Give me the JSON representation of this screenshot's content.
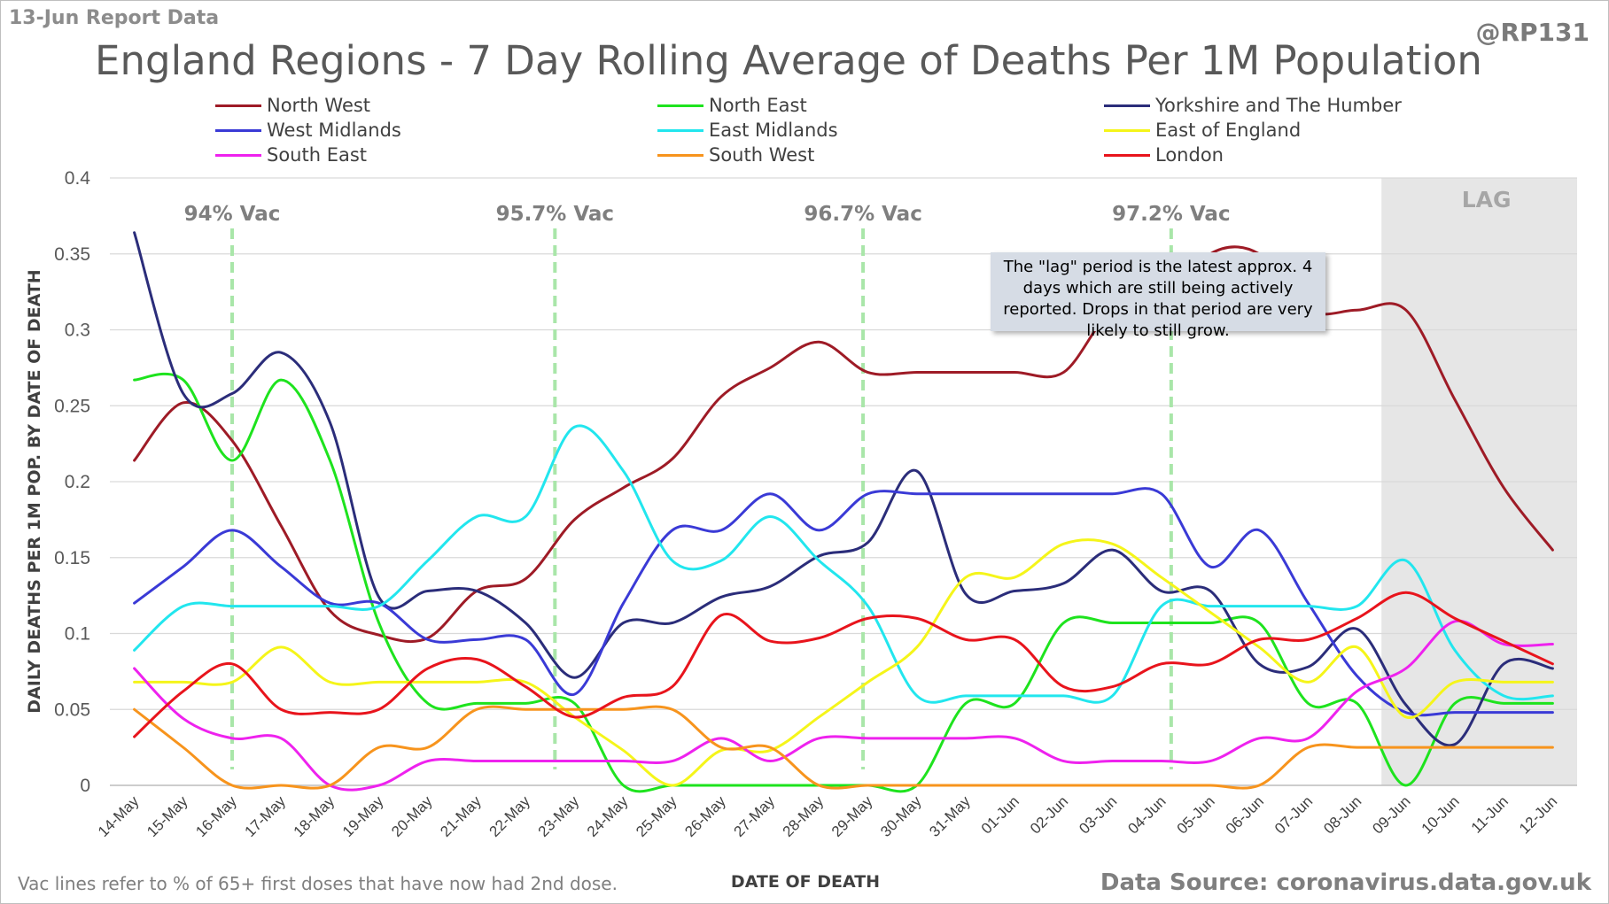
{
  "header": {
    "report_label": "13-Jun Report Data",
    "handle": "@RP131"
  },
  "footer": {
    "footnote": "Vac lines refer to % of 65+ first doses that have now had 2nd dose.",
    "source": "Data Source: coronavirus.data.gov.uk"
  },
  "note": "The \"lag\" period is the latest approx. 4 days which are still being actively reported. Drops in that period are very likely to still grow.",
  "chart_data": {
    "type": "line",
    "title": "England Regions - 7 Day Rolling Average of Deaths Per 1M Population",
    "xlabel": "DATE OF DEATH",
    "ylabel": "DAILY DEATHS PER 1M POP. BY DATE OF DEATH",
    "ylim": [
      0,
      0.4
    ],
    "yticks": [
      0,
      0.05,
      0.1,
      0.15,
      0.2,
      0.25,
      0.3,
      0.35,
      0.4
    ],
    "ytick_labels": [
      "0",
      "0.05",
      "0.1",
      "0.15",
      "0.2",
      "0.25",
      "0.3",
      "0.35",
      "0.4"
    ],
    "grid": true,
    "legend_position": "top",
    "categories": [
      "14-May",
      "15-May",
      "16-May",
      "17-May",
      "18-May",
      "19-May",
      "20-May",
      "21-May",
      "22-May",
      "23-May",
      "24-May",
      "25-May",
      "26-May",
      "27-May",
      "28-May",
      "29-May",
      "30-May",
      "31-May",
      "01-Jun",
      "02-Jun",
      "03-Jun",
      "04-Jun",
      "05-Jun",
      "06-Jun",
      "07-Jun",
      "08-Jun",
      "09-Jun",
      "10-Jun",
      "11-Jun",
      "12-Jun"
    ],
    "lag": {
      "label": "LAG",
      "start_index": 26,
      "color": "#e6e6e6"
    },
    "vac_lines": [
      {
        "label": "94% Vac",
        "position": 2.0
      },
      {
        "label": "95.7% Vac",
        "position": 8.6
      },
      {
        "label": "96.7% Vac",
        "position": 14.9
      },
      {
        "label": "97.2% Vac",
        "position": 21.2
      }
    ],
    "series": [
      {
        "name": "North West",
        "color": "#9e1b26",
        "values": [
          0.214,
          0.252,
          0.227,
          0.171,
          0.115,
          0.099,
          0.097,
          0.128,
          0.136,
          0.175,
          0.196,
          0.215,
          0.256,
          0.275,
          0.292,
          0.272,
          0.272,
          0.272,
          0.272,
          0.272,
          0.313,
          0.313,
          0.35,
          0.35,
          0.313,
          0.313,
          0.313,
          0.254,
          0.196,
          0.155
        ]
      },
      {
        "name": "North East",
        "color": "#1ee31e",
        "values": [
          0.267,
          0.267,
          0.214,
          0.267,
          0.214,
          0.107,
          0.054,
          0.054,
          0.054,
          0.054,
          0.0,
          0.0,
          0.0,
          0.0,
          0.0,
          0.0,
          0.0,
          0.054,
          0.054,
          0.107,
          0.107,
          0.107,
          0.107,
          0.107,
          0.054,
          0.054,
          0.0,
          0.054,
          0.054,
          0.054
        ]
      },
      {
        "name": "Yorkshire and The Humber",
        "color": "#2b2d7a",
        "values": [
          0.364,
          0.258,
          0.258,
          0.285,
          0.239,
          0.124,
          0.128,
          0.128,
          0.107,
          0.071,
          0.107,
          0.107,
          0.124,
          0.131,
          0.151,
          0.16,
          0.207,
          0.126,
          0.128,
          0.133,
          0.155,
          0.128,
          0.128,
          0.08,
          0.078,
          0.103,
          0.053,
          0.027,
          0.08,
          0.077
        ]
      },
      {
        "name": "West Midlands",
        "color": "#3a3ad6",
        "values": [
          0.12,
          0.144,
          0.168,
          0.144,
          0.12,
          0.12,
          0.096,
          0.096,
          0.096,
          0.06,
          0.12,
          0.168,
          0.168,
          0.192,
          0.168,
          0.192,
          0.192,
          0.192,
          0.192,
          0.192,
          0.192,
          0.192,
          0.144,
          0.168,
          0.12,
          0.072,
          0.048,
          0.048,
          0.048,
          0.048
        ]
      },
      {
        "name": "East Midlands",
        "color": "#22e6ee",
        "values": [
          0.089,
          0.118,
          0.118,
          0.118,
          0.118,
          0.118,
          0.148,
          0.177,
          0.177,
          0.236,
          0.207,
          0.148,
          0.148,
          0.177,
          0.148,
          0.118,
          0.059,
          0.059,
          0.059,
          0.059,
          0.059,
          0.118,
          0.118,
          0.118,
          0.118,
          0.118,
          0.148,
          0.089,
          0.059,
          0.059
        ]
      },
      {
        "name": "East of England",
        "color": "#f5f51a",
        "values": [
          0.068,
          0.068,
          0.068,
          0.091,
          0.068,
          0.068,
          0.068,
          0.068,
          0.068,
          0.045,
          0.023,
          0.0,
          0.023,
          0.023,
          0.045,
          0.068,
          0.091,
          0.137,
          0.137,
          0.159,
          0.159,
          0.137,
          0.114,
          0.091,
          0.068,
          0.091,
          0.045,
          0.068,
          0.068,
          0.068
        ]
      },
      {
        "name": "South East",
        "color": "#ee22ee",
        "values": [
          0.077,
          0.044,
          0.031,
          0.031,
          0.0,
          0.0,
          0.016,
          0.016,
          0.016,
          0.016,
          0.016,
          0.016,
          0.031,
          0.016,
          0.031,
          0.031,
          0.031,
          0.031,
          0.031,
          0.016,
          0.016,
          0.016,
          0.016,
          0.031,
          0.031,
          0.062,
          0.077,
          0.108,
          0.093,
          0.093
        ]
      },
      {
        "name": "South West",
        "color": "#f7941d",
        "values": [
          0.05,
          0.025,
          0.0,
          0.0,
          0.0,
          0.025,
          0.025,
          0.05,
          0.05,
          0.05,
          0.05,
          0.05,
          0.025,
          0.025,
          0.0,
          0.0,
          0.0,
          0.0,
          0.0,
          0.0,
          0.0,
          0.0,
          0.0,
          0.0,
          0.025,
          0.025,
          0.025,
          0.025,
          0.025,
          0.025
        ]
      },
      {
        "name": "London",
        "color": "#e8141c",
        "values": [
          0.032,
          0.062,
          0.08,
          0.05,
          0.048,
          0.05,
          0.077,
          0.083,
          0.065,
          0.045,
          0.058,
          0.065,
          0.112,
          0.095,
          0.097,
          0.11,
          0.11,
          0.096,
          0.096,
          0.065,
          0.065,
          0.08,
          0.08,
          0.096,
          0.096,
          0.11,
          0.127,
          0.11,
          0.095,
          0.08
        ]
      }
    ]
  }
}
